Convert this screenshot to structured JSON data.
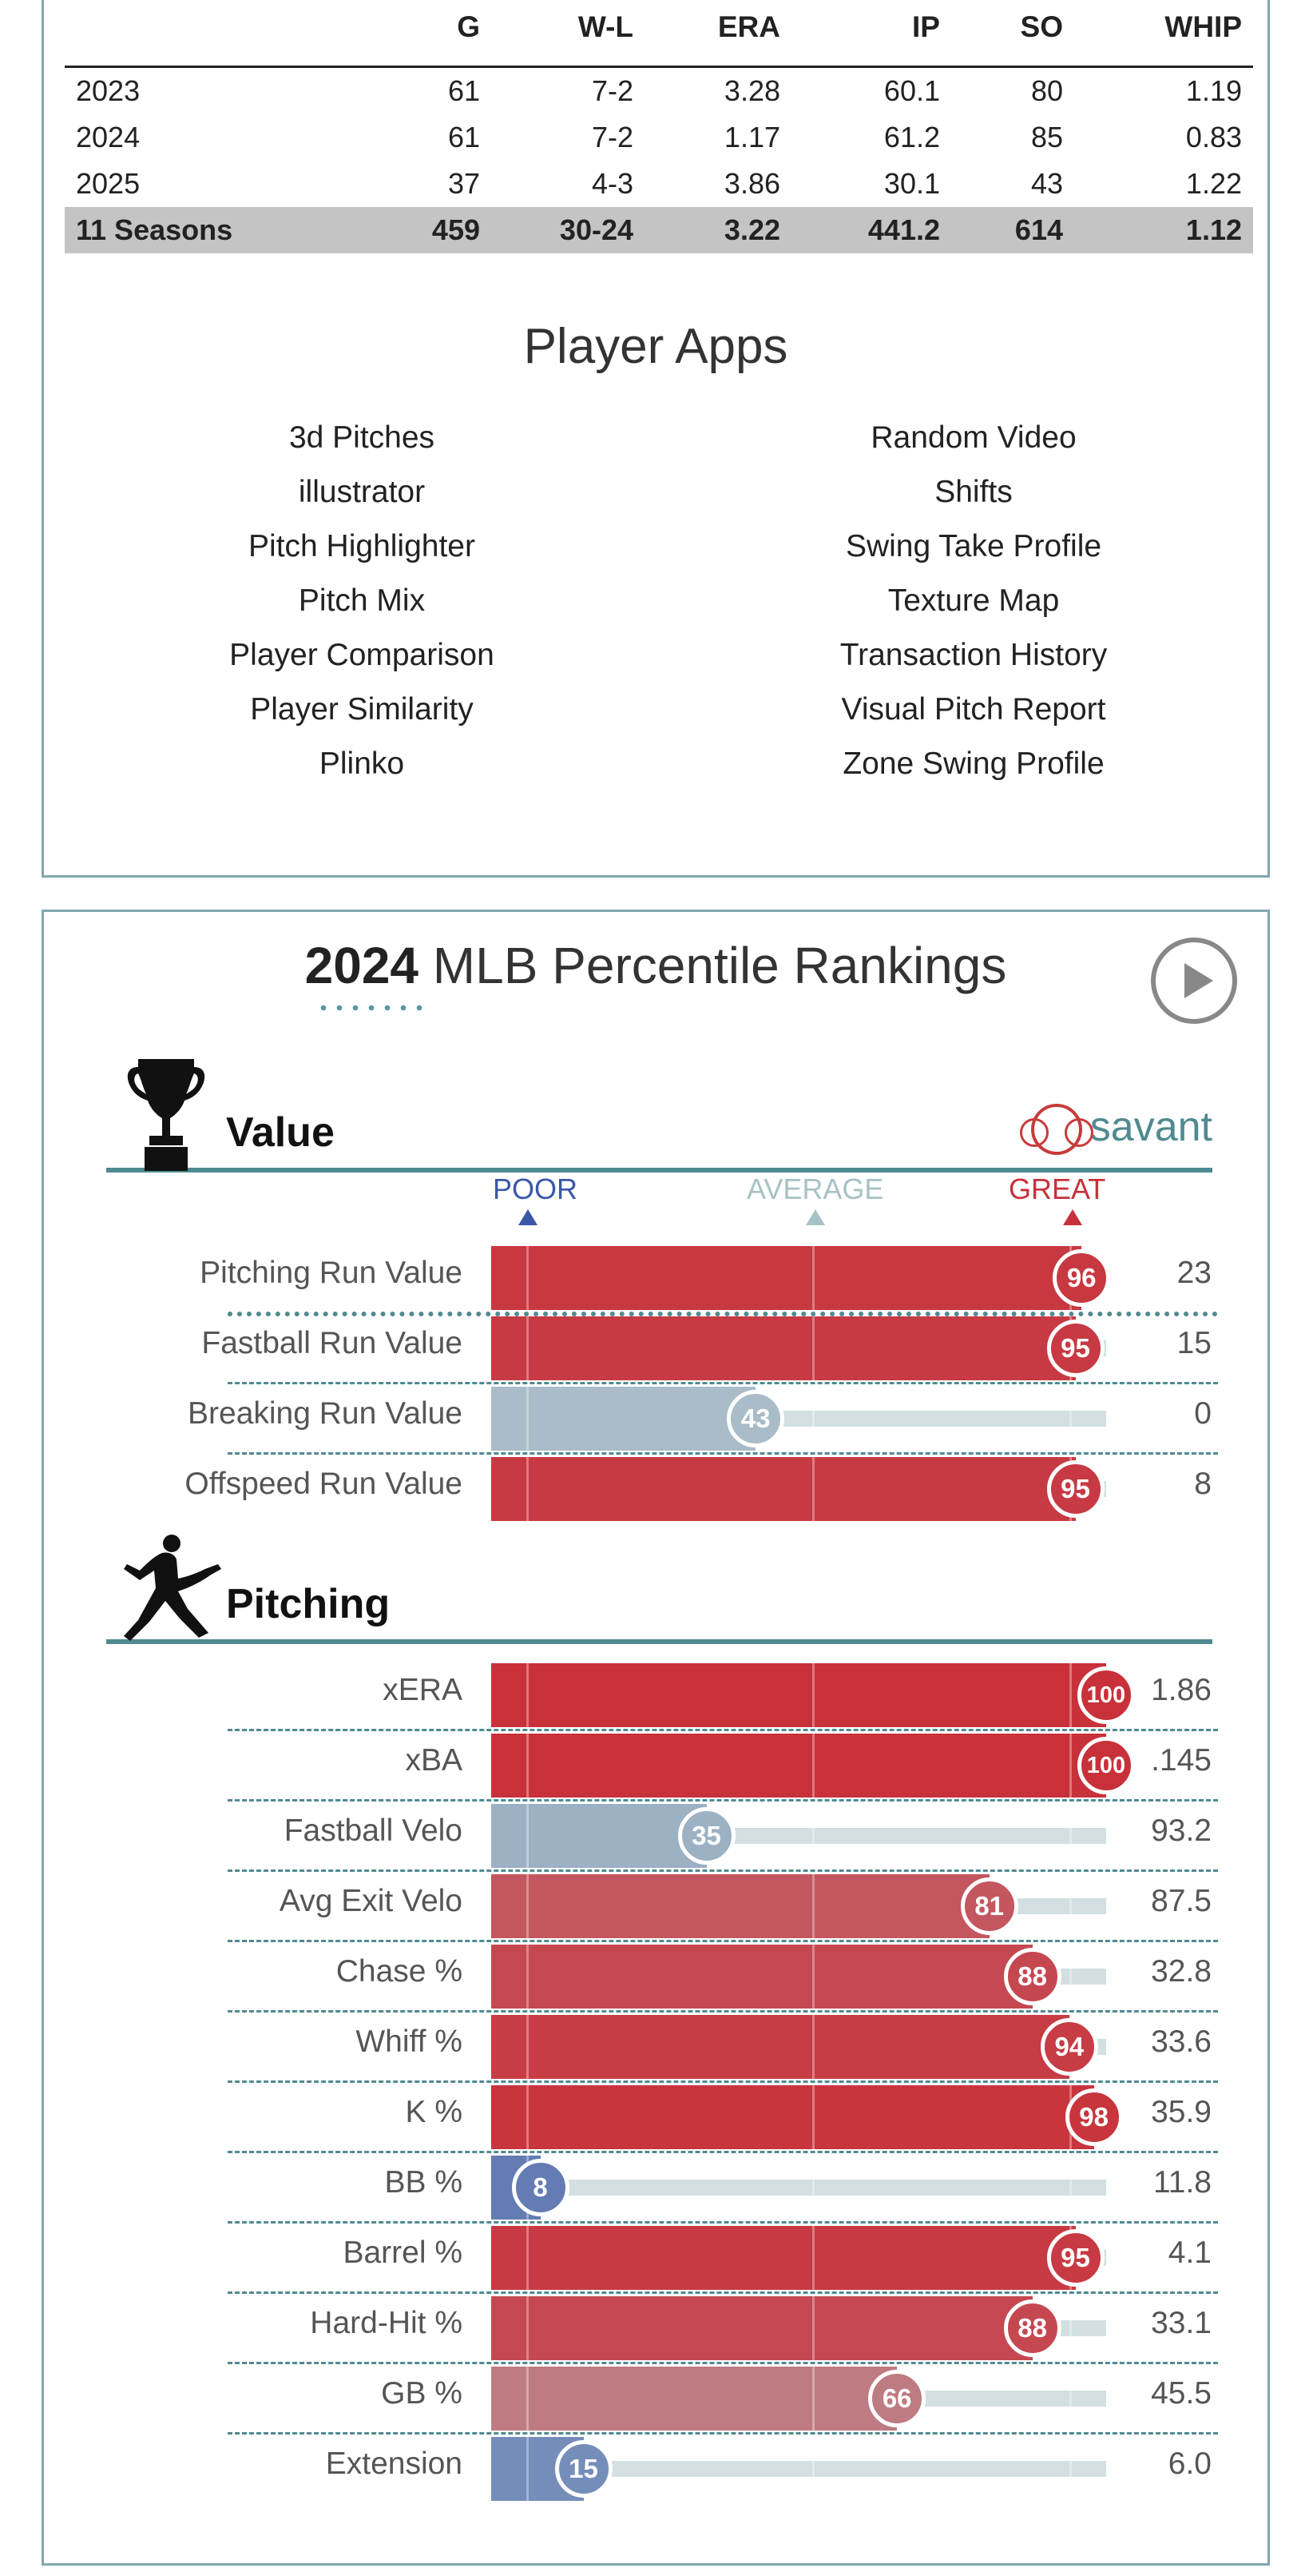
{
  "stats": {
    "headers": [
      "G",
      "W-L",
      "ERA",
      "IP",
      "SO",
      "WHIP"
    ],
    "rows": [
      {
        "season": "2023",
        "g": "61",
        "wl": "7-2",
        "era": "3.28",
        "ip": "60.1",
        "so": "80",
        "whip": "1.19"
      },
      {
        "season": "2024",
        "g": "61",
        "wl": "7-2",
        "era": "1.17",
        "ip": "61.2",
        "so": "85",
        "whip": "0.83"
      },
      {
        "season": "2025",
        "g": "37",
        "wl": "4-3",
        "era": "3.86",
        "ip": "30.1",
        "so": "43",
        "whip": "1.22"
      }
    ],
    "total": {
      "season": "11 Seasons",
      "g": "459",
      "wl": "30-24",
      "era": "3.22",
      "ip": "441.2",
      "so": "614",
      "whip": "1.12"
    }
  },
  "apps": {
    "title": "Player Apps",
    "left": [
      "3d Pitches",
      "illustrator",
      "Pitch Highlighter",
      "Pitch Mix",
      "Player Comparison",
      "Player Similarity",
      "Plinko"
    ],
    "right": [
      "Random Video",
      "Shifts",
      "Swing Take Profile",
      "Texture Map",
      "Transaction History",
      "Visual Pitch Report",
      "Zone Swing Profile"
    ]
  },
  "percentile": {
    "year": "2024",
    "title_rest": "MLB Percentile Rankings",
    "brand": "savant",
    "scale": {
      "poor": "POOR",
      "average": "AVERAGE",
      "great": "GREAT"
    },
    "colors": {
      "poor": "#3a57a8",
      "average": "#a7c2c6",
      "great": "#c8313a"
    },
    "value_section": {
      "title": "Value",
      "metrics": [
        {
          "label": "Pitching Run Value",
          "percentile": 96,
          "value": "23"
        },
        {
          "label": "Fastball Run Value",
          "percentile": 95,
          "value": "15"
        },
        {
          "label": "Breaking Run Value",
          "percentile": 43,
          "value": "0"
        },
        {
          "label": "Offspeed Run Value",
          "percentile": 95,
          "value": "8"
        }
      ]
    },
    "pitching_section": {
      "title": "Pitching",
      "metrics": [
        {
          "label": "xERA",
          "percentile": 100,
          "value": "1.86"
        },
        {
          "label": "xBA",
          "percentile": 100,
          "value": ".145"
        },
        {
          "label": "Fastball Velo",
          "percentile": 35,
          "value": "93.2"
        },
        {
          "label": "Avg Exit Velo",
          "percentile": 81,
          "value": "87.5"
        },
        {
          "label": "Chase %",
          "percentile": 88,
          "value": "32.8"
        },
        {
          "label": "Whiff %",
          "percentile": 94,
          "value": "33.6"
        },
        {
          "label": "K %",
          "percentile": 98,
          "value": "35.9"
        },
        {
          "label": "BB %",
          "percentile": 8,
          "value": "11.8"
        },
        {
          "label": "Barrel %",
          "percentile": 95,
          "value": "4.1"
        },
        {
          "label": "Hard-Hit %",
          "percentile": 88,
          "value": "33.1"
        },
        {
          "label": "GB %",
          "percentile": 66,
          "value": "45.5"
        },
        {
          "label": "Extension",
          "percentile": 15,
          "value": "6.0"
        }
      ]
    }
  }
}
